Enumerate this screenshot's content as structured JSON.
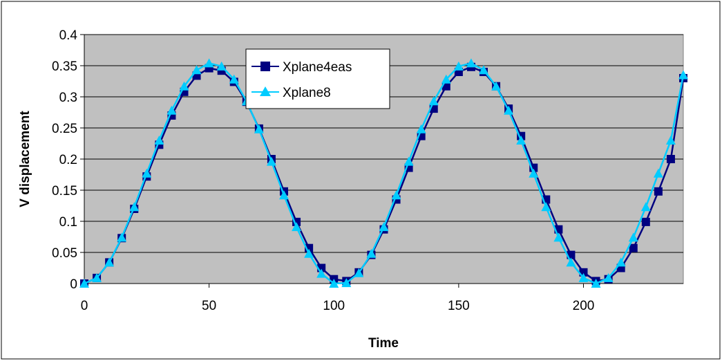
{
  "chart_data": {
    "type": "line",
    "title": "",
    "xlabel": "Time",
    "ylabel": "V displacement",
    "xlim": [
      0,
      240
    ],
    "ylim": [
      0,
      0.4
    ],
    "x_ticks": [
      0,
      50,
      100,
      150,
      200
    ],
    "y_ticks": [
      0,
      0.05,
      0.1,
      0.15,
      0.2,
      0.25,
      0.3,
      0.35,
      0.4
    ],
    "x_tick_labels": [
      "0",
      "50",
      "100",
      "150",
      "200"
    ],
    "y_tick_labels": [
      "0",
      "0.05",
      "0.1",
      "0.15",
      "0.2",
      "0.25",
      "0.3",
      "0.35",
      "0.4"
    ],
    "grid": "horizontal",
    "plot_background": "#C0C0C0",
    "legend_position": "top-center",
    "series": [
      {
        "name": "Xplane4eas",
        "color": "#000080",
        "marker": "square",
        "x": [
          0,
          5,
          10,
          15,
          20,
          25,
          30,
          35,
          40,
          45,
          50,
          55,
          60,
          65,
          70,
          75,
          80,
          85,
          90,
          95,
          100,
          105,
          110,
          115,
          120,
          125,
          130,
          135,
          140,
          145,
          150,
          155,
          160,
          165,
          170,
          175,
          180,
          185,
          190,
          195,
          200,
          205,
          210,
          215,
          220,
          225,
          230,
          235,
          240
        ],
        "y": [
          0,
          0.009,
          0.034,
          0.073,
          0.12,
          0.172,
          0.223,
          0.27,
          0.308,
          0.334,
          0.346,
          0.342,
          0.324,
          0.292,
          0.249,
          0.2,
          0.148,
          0.099,
          0.057,
          0.025,
          0.007,
          0.004,
          0.018,
          0.046,
          0.087,
          0.135,
          0.186,
          0.237,
          0.281,
          0.317,
          0.34,
          0.348,
          0.34,
          0.317,
          0.281,
          0.237,
          0.186,
          0.135,
          0.087,
          0.046,
          0.018,
          0.004,
          0.007,
          0.025,
          0.057,
          0.099,
          0.148,
          0.2,
          0.33
        ]
      },
      {
        "name": "Xplane8",
        "color": "#00CCFF",
        "marker": "triangle",
        "x": [
          0,
          5,
          10,
          15,
          20,
          25,
          30,
          35,
          40,
          45,
          50,
          55,
          60,
          65,
          70,
          75,
          80,
          85,
          90,
          95,
          100,
          105,
          110,
          115,
          120,
          125,
          130,
          135,
          140,
          145,
          150,
          155,
          160,
          165,
          170,
          175,
          180,
          185,
          190,
          195,
          200,
          205,
          210,
          215,
          220,
          225,
          230,
          235,
          240
        ],
        "y": [
          0,
          0.009,
          0.034,
          0.074,
          0.123,
          0.177,
          0.23,
          0.278,
          0.317,
          0.343,
          0.354,
          0.349,
          0.328,
          0.293,
          0.248,
          0.196,
          0.142,
          0.091,
          0.048,
          0.016,
          0.0,
          0.001,
          0.017,
          0.048,
          0.091,
          0.142,
          0.196,
          0.248,
          0.293,
          0.328,
          0.349,
          0.354,
          0.343,
          0.317,
          0.278,
          0.23,
          0.177,
          0.123,
          0.074,
          0.034,
          0.009,
          0.0,
          0.009,
          0.034,
          0.074,
          0.123,
          0.177,
          0.23,
          0.335
        ]
      }
    ]
  }
}
